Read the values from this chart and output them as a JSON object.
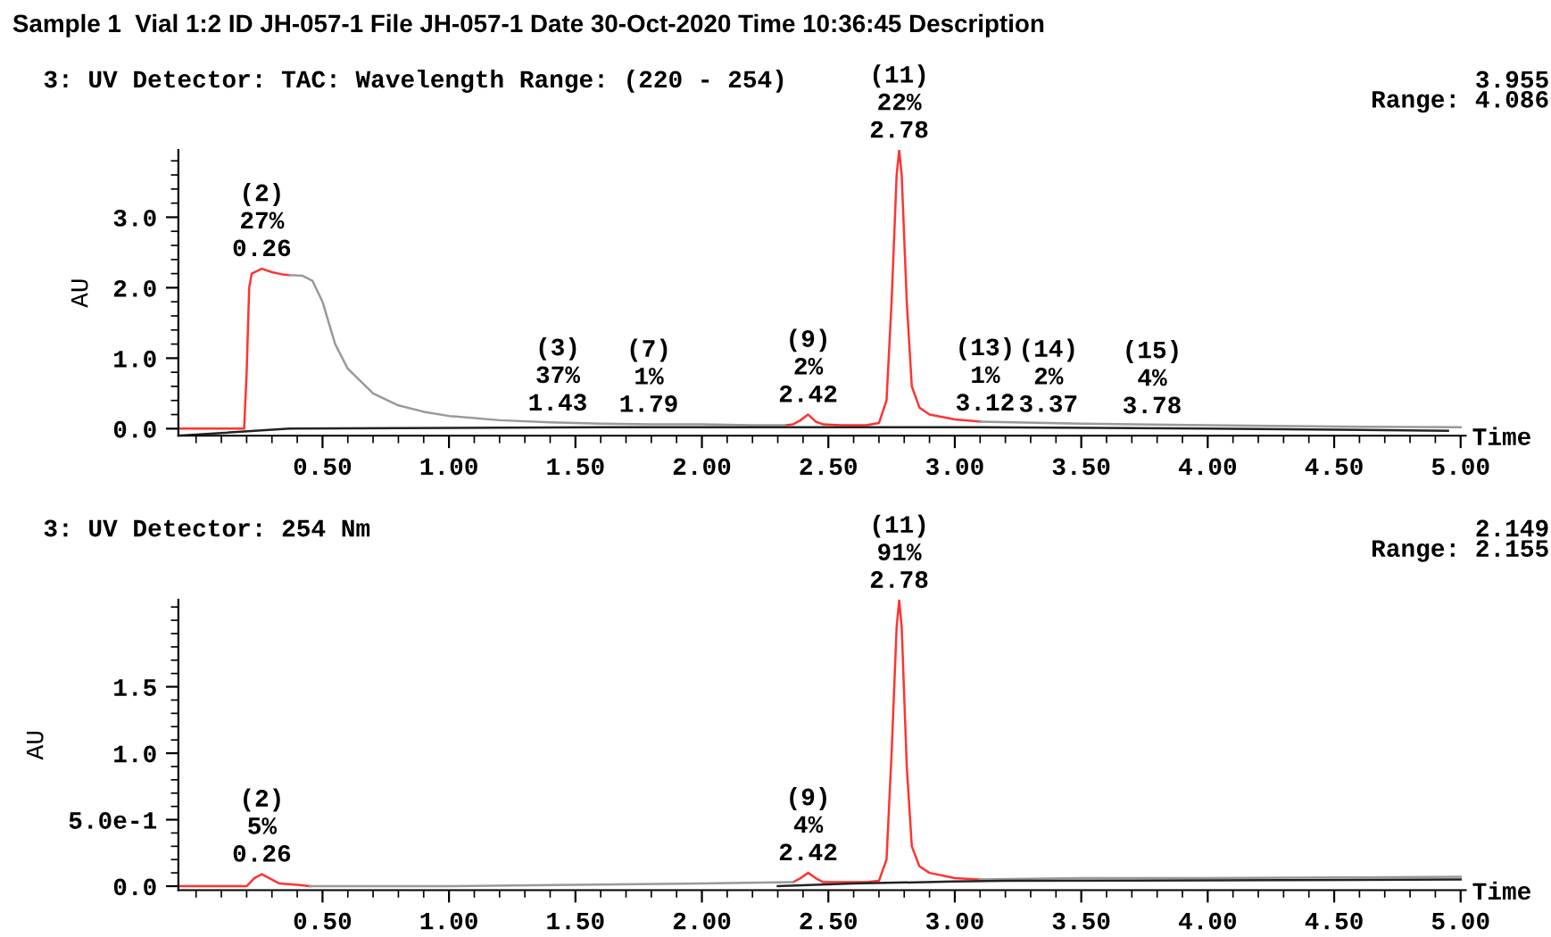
{
  "chart_data": [
    {
      "type": "line",
      "title": "3: UV Detector: TAC: Wavelength Range: (220 - 254)",
      "xlabel": "Time",
      "ylabel": "AU",
      "annotations": [
        "Sample 1  Vial 1:2 ID JH-057-1 File JH-057-1 Date 30-Oct-2020 Time 10:36:45 Description",
        "3.955",
        "Range: 4.086",
        {
          "text": "(2)\n27%\n0.26",
          "x": 0.26,
          "y": 2.27
        },
        {
          "text": "(3)\n37%\n1.43",
          "x": 1.43,
          "y": 0.08
        },
        {
          "text": "(7)\n1%\n1.79",
          "x": 1.79,
          "y": 0.06
        },
        {
          "text": "(9)\n2%\n2.42",
          "x": 2.42,
          "y": 0.2
        },
        {
          "text": "(11)\n22%\n2.78",
          "x": 2.78,
          "y": 3.95
        },
        {
          "text": "(13)\n1%\n3.12",
          "x": 3.12,
          "y": 0.08
        },
        {
          "text": "(14)\n2%\n3.37",
          "x": 3.37,
          "y": 0.06
        },
        {
          "text": "(15)\n4%\n3.78",
          "x": 3.78,
          "y": 0.04
        }
      ],
      "series": [
        {
          "color": "#ff3333",
          "x": [
            -0.07,
            0.0,
            0.1,
            0.19,
            0.2,
            0.21,
            0.22,
            0.26,
            0.3,
            0.34,
            0.37,
            null,
            2.33,
            2.36,
            2.39,
            2.42,
            2.45,
            2.48,
            2.55,
            2.65,
            2.7,
            2.73,
            2.75,
            2.77,
            2.78,
            2.79,
            2.81,
            2.83,
            2.86,
            2.9,
            3.0,
            3.1
          ],
          "values": [
            0.0,
            0.0,
            0.0,
            0.0,
            0.8,
            2.0,
            2.2,
            2.27,
            2.22,
            2.19,
            2.18,
            null,
            0.05,
            0.06,
            0.12,
            0.2,
            0.1,
            0.06,
            0.05,
            0.05,
            0.08,
            0.4,
            1.8,
            3.6,
            3.95,
            3.6,
            1.8,
            0.6,
            0.3,
            0.2,
            0.13,
            0.1
          ]
        },
        {
          "color": "#999999",
          "x": [
            0.37,
            0.42,
            0.46,
            0.5,
            0.55,
            0.6,
            0.7,
            0.8,
            0.9,
            1.0,
            1.2,
            1.4,
            1.6,
            1.8,
            2.0,
            2.2,
            2.33,
            null,
            3.1,
            3.5,
            4.0,
            4.5,
            5.0
          ],
          "values": [
            2.18,
            2.17,
            2.1,
            1.8,
            1.2,
            0.85,
            0.5,
            0.33,
            0.24,
            0.18,
            0.12,
            0.09,
            0.07,
            0.06,
            0.06,
            0.05,
            0.05,
            null,
            0.1,
            0.07,
            0.05,
            0.03,
            0.02
          ]
        },
        {
          "color": "#222222",
          "x": [
            -0.07,
            0.37,
            1.6,
            2.5,
            3.1,
            4.0,
            4.95
          ],
          "values": [
            -0.1,
            0.0,
            0.02,
            0.02,
            0.02,
            0.0,
            -0.03
          ]
        }
      ],
      "xlim": [
        -0.07,
        5.02
      ],
      "ylim": [
        -0.1,
        3.955
      ],
      "xticks": [
        {
          "value": 0.5,
          "label": "0.50"
        },
        {
          "value": 1.0,
          "label": "1.00"
        },
        {
          "value": 1.5,
          "label": "1.50"
        },
        {
          "value": 2.0,
          "label": "2.00"
        },
        {
          "value": 2.5,
          "label": "2.50"
        },
        {
          "value": 3.0,
          "label": "3.00"
        },
        {
          "value": 3.5,
          "label": "3.50"
        },
        {
          "value": 4.0,
          "label": "4.00"
        },
        {
          "value": 4.5,
          "label": "4.50"
        },
        {
          "value": 5.0,
          "label": "5.00"
        }
      ],
      "yticks": [
        {
          "value": 0,
          "label": "0.0"
        },
        {
          "value": 1,
          "label": "1.0"
        },
        {
          "value": 2,
          "label": "2.0"
        },
        {
          "value": 3,
          "label": "3.0"
        }
      ],
      "grid": false,
      "legend": false
    },
    {
      "type": "line",
      "title": "3: UV Detector: 254 Nm",
      "xlabel": "Time",
      "ylabel": "AU",
      "annotations": [
        "2.149",
        "Range: 2.155",
        {
          "text": "(2)\n5%\n0.26",
          "x": 0.26,
          "y": 0.09
        },
        {
          "text": "(9)\n4%\n2.42",
          "x": 2.42,
          "y": 0.1
        },
        {
          "text": "(11)\n91%\n2.78",
          "x": 2.78,
          "y": 2.15
        }
      ],
      "series": [
        {
          "color": "#ff3333",
          "x": [
            -0.07,
            0.0,
            0.1,
            0.2,
            0.23,
            0.26,
            0.29,
            0.33,
            0.4,
            0.45,
            null,
            2.36,
            2.39,
            2.42,
            2.45,
            2.48,
            2.55,
            2.65,
            2.7,
            2.73,
            2.75,
            2.77,
            2.78,
            2.79,
            2.81,
            2.83,
            2.86,
            2.9,
            3.0,
            3.1
          ],
          "values": [
            0.0,
            0.0,
            0.0,
            0.0,
            0.06,
            0.09,
            0.06,
            0.02,
            0.01,
            0.0,
            null,
            0.03,
            0.06,
            0.1,
            0.06,
            0.03,
            0.03,
            0.03,
            0.04,
            0.2,
            1.0,
            1.95,
            2.15,
            1.95,
            0.9,
            0.3,
            0.15,
            0.1,
            0.06,
            0.05
          ]
        },
        {
          "color": "#999999",
          "x": [
            0.45,
            1.0,
            1.5,
            2.0,
            2.36,
            null,
            3.1,
            3.5,
            4.0,
            4.5,
            5.0
          ],
          "values": [
            0.0,
            0.0,
            0.01,
            0.02,
            0.03,
            null,
            0.05,
            0.06,
            0.06,
            0.065,
            0.07
          ]
        },
        {
          "color": "#222222",
          "x": [
            2.3,
            2.6,
            3.0,
            3.2,
            5.0
          ],
          "values": [
            0.0,
            0.02,
            0.035,
            0.04,
            0.05
          ]
        }
      ],
      "xlim": [
        -0.07,
        5.02
      ],
      "ylim": [
        -0.03,
        2.155
      ],
      "xticks": [
        {
          "value": 0.5,
          "label": "0.50"
        },
        {
          "value": 1.0,
          "label": "1.00"
        },
        {
          "value": 1.5,
          "label": "1.50"
        },
        {
          "value": 2.0,
          "label": "2.00"
        },
        {
          "value": 2.5,
          "label": "2.50"
        },
        {
          "value": 3.0,
          "label": "3.00"
        },
        {
          "value": 3.5,
          "label": "3.50"
        },
        {
          "value": 4.0,
          "label": "4.00"
        },
        {
          "value": 4.5,
          "label": "4.50"
        },
        {
          "value": 5.0,
          "label": "5.00"
        }
      ],
      "yticks": [
        {
          "value": 0,
          "label": "0.0"
        },
        {
          "value": 0.5,
          "label": "5.0e-1"
        },
        {
          "value": 1.0,
          "label": "1.0"
        },
        {
          "value": 1.5,
          "label": "1.5"
        }
      ],
      "grid": false,
      "legend": false
    }
  ]
}
